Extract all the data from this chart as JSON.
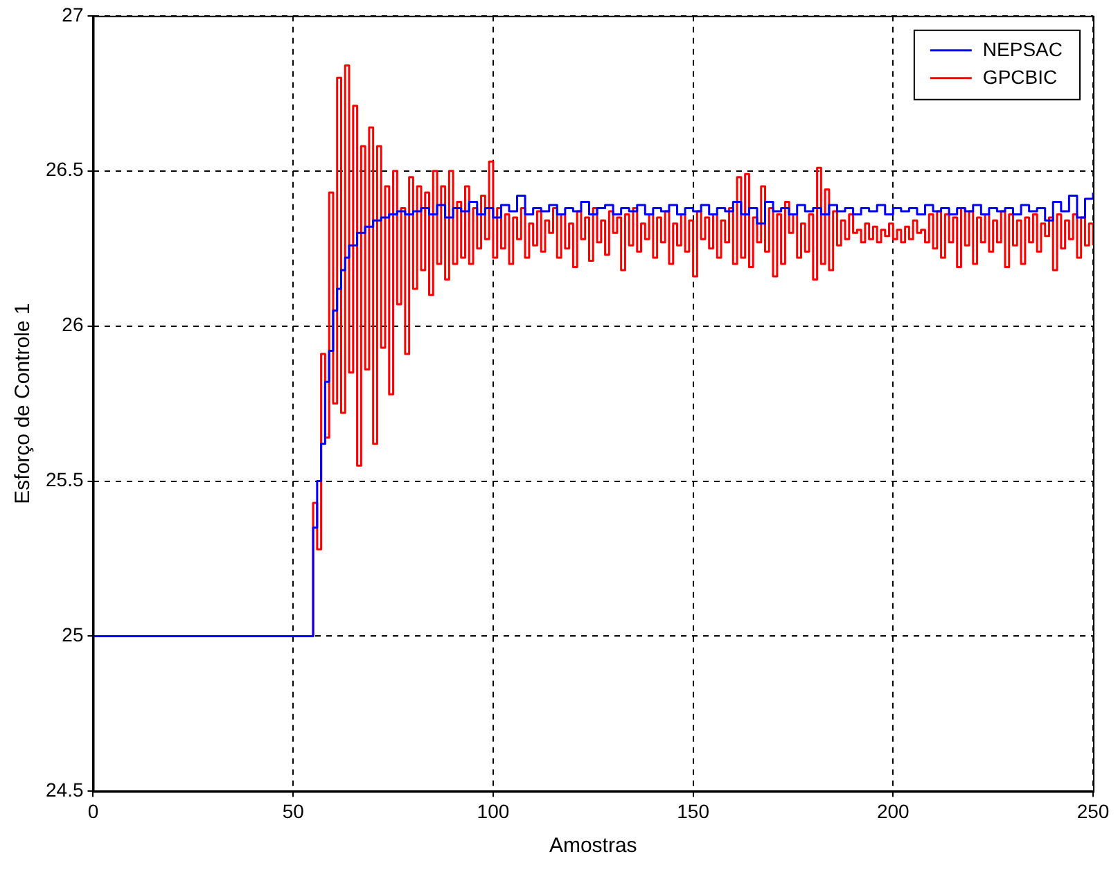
{
  "chart_data": {
    "type": "step",
    "xlabel": "Amostras",
    "ylabel": "Esforço de Controle 1",
    "xlim": [
      0,
      250
    ],
    "xticks": [
      0,
      50,
      100,
      150,
      200,
      250
    ],
    "ylim": [
      24.5,
      27
    ],
    "yticks": [
      24.5,
      25,
      25.5,
      26,
      26.5,
      27
    ],
    "grid": true,
    "legend": "top right",
    "line_style": "solid",
    "marker": "none",
    "series": [
      {
        "name": "NEPSAC",
        "color": "#0000ff",
        "x": [
          0,
          55,
          56,
          57,
          58,
          59,
          60,
          61,
          62,
          63,
          64,
          66,
          68,
          70,
          72,
          74,
          76,
          78,
          80,
          82,
          84,
          86,
          88,
          90,
          92,
          94,
          96,
          98,
          100,
          102,
          104,
          106,
          108,
          110,
          112,
          114,
          116,
          118,
          120,
          122,
          124,
          126,
          128,
          130,
          132,
          134,
          136,
          138,
          140,
          142,
          144,
          146,
          148,
          150,
          152,
          154,
          156,
          158,
          160,
          162,
          164,
          166,
          168,
          170,
          172,
          174,
          176,
          178,
          180,
          182,
          184,
          186,
          188,
          190,
          192,
          194,
          196,
          198,
          200,
          202,
          204,
          206,
          208,
          210,
          212,
          214,
          216,
          218,
          220,
          222,
          224,
          226,
          228,
          230,
          232,
          234,
          236,
          238,
          240,
          242,
          244,
          246,
          248,
          250
        ],
        "values": [
          25,
          25.35,
          25.5,
          25.62,
          25.82,
          25.92,
          26.05,
          26.12,
          26.18,
          26.22,
          26.26,
          26.3,
          26.32,
          26.34,
          26.35,
          26.36,
          26.37,
          26.36,
          26.37,
          26.38,
          26.36,
          26.39,
          26.35,
          26.38,
          26.37,
          26.4,
          26.36,
          26.38,
          26.35,
          26.39,
          26.37,
          26.42,
          26.36,
          26.38,
          26.37,
          26.39,
          26.36,
          26.38,
          26.37,
          26.4,
          26.36,
          26.38,
          26.39,
          26.36,
          26.38,
          26.37,
          26.39,
          26.36,
          26.38,
          26.37,
          26.39,
          26.36,
          26.38,
          26.37,
          26.39,
          26.36,
          26.38,
          26.37,
          26.4,
          26.36,
          26.38,
          26.33,
          26.4,
          26.37,
          26.38,
          26.36,
          26.39,
          26.37,
          26.38,
          26.36,
          26.39,
          26.37,
          26.38,
          26.36,
          26.38,
          26.37,
          26.39,
          26.36,
          26.38,
          26.37,
          26.38,
          26.36,
          26.39,
          26.37,
          26.38,
          26.36,
          26.38,
          26.37,
          26.39,
          26.36,
          26.38,
          26.37,
          26.38,
          26.36,
          26.39,
          26.37,
          26.38,
          26.34,
          26.4,
          26.37,
          26.42,
          26.35,
          26.41,
          26.43
        ]
      },
      {
        "name": "GPCBIC",
        "color": "#ff0000",
        "x": [
          0,
          55,
          56,
          57,
          58,
          59,
          60,
          61,
          62,
          63,
          64,
          65,
          66,
          67,
          68,
          69,
          70,
          71,
          72,
          73,
          74,
          75,
          76,
          77,
          78,
          79,
          80,
          81,
          82,
          83,
          84,
          85,
          86,
          87,
          88,
          89,
          90,
          91,
          92,
          93,
          94,
          95,
          96,
          97,
          98,
          99,
          100,
          101,
          102,
          103,
          104,
          105,
          106,
          107,
          108,
          109,
          110,
          111,
          112,
          113,
          114,
          115,
          116,
          117,
          118,
          119,
          120,
          121,
          122,
          123,
          124,
          125,
          126,
          127,
          128,
          129,
          130,
          131,
          132,
          133,
          134,
          135,
          136,
          137,
          138,
          139,
          140,
          141,
          142,
          143,
          144,
          145,
          146,
          147,
          148,
          149,
          150,
          151,
          152,
          153,
          154,
          155,
          156,
          157,
          158,
          159,
          160,
          161,
          162,
          163,
          164,
          165,
          166,
          167,
          168,
          169,
          170,
          171,
          172,
          173,
          174,
          175,
          176,
          177,
          178,
          179,
          180,
          181,
          182,
          183,
          184,
          185,
          186,
          187,
          188,
          189,
          190,
          191,
          192,
          193,
          194,
          195,
          196,
          197,
          198,
          199,
          200,
          201,
          202,
          203,
          204,
          205,
          206,
          207,
          208,
          209,
          210,
          211,
          212,
          213,
          214,
          215,
          216,
          217,
          218,
          219,
          220,
          221,
          222,
          223,
          224,
          225,
          226,
          227,
          228,
          229,
          230,
          231,
          232,
          233,
          234,
          235,
          236,
          237,
          238,
          239,
          240,
          241,
          242,
          243,
          244,
          245,
          246,
          247,
          248,
          249,
          250
        ],
        "values": [
          25,
          25.43,
          25.28,
          25.91,
          25.64,
          26.43,
          25.75,
          26.8,
          25.72,
          26.84,
          25.85,
          26.71,
          25.55,
          26.58,
          25.86,
          26.64,
          25.62,
          26.58,
          25.93,
          26.45,
          25.78,
          26.5,
          26.07,
          26.38,
          25.91,
          26.48,
          26.12,
          26.45,
          26.18,
          26.43,
          26.1,
          26.5,
          26.2,
          26.45,
          26.15,
          26.5,
          26.2,
          26.4,
          26.22,
          26.45,
          26.2,
          26.38,
          26.25,
          26.42,
          26.28,
          26.53,
          26.22,
          26.38,
          26.25,
          26.36,
          26.2,
          26.35,
          26.28,
          26.38,
          26.22,
          26.33,
          26.26,
          26.37,
          26.24,
          26.34,
          26.3,
          26.38,
          26.22,
          26.36,
          26.25,
          26.33,
          26.19,
          26.37,
          26.28,
          26.35,
          26.21,
          26.38,
          26.27,
          26.34,
          26.23,
          26.37,
          26.3,
          26.35,
          26.18,
          26.36,
          26.26,
          26.38,
          26.24,
          26.33,
          26.28,
          26.36,
          26.22,
          26.35,
          26.27,
          26.37,
          26.2,
          26.33,
          26.26,
          26.36,
          26.24,
          26.34,
          26.16,
          26.37,
          26.28,
          26.35,
          26.25,
          26.36,
          26.22,
          26.34,
          26.27,
          26.38,
          26.2,
          26.48,
          26.22,
          26.49,
          26.19,
          26.35,
          26.27,
          26.45,
          26.24,
          26.38,
          26.16,
          26.36,
          26.2,
          26.4,
          26.3,
          26.36,
          26.22,
          26.33,
          26.24,
          26.36,
          26.15,
          26.51,
          26.2,
          26.44,
          26.18,
          26.37,
          26.26,
          26.34,
          26.28,
          26.36,
          26.3,
          26.31,
          26.27,
          26.33,
          26.28,
          26.32,
          26.27,
          26.31,
          26.29,
          26.33,
          26.28,
          26.31,
          26.27,
          26.32,
          26.28,
          26.34,
          26.3,
          26.31,
          26.27,
          26.36,
          26.25,
          26.37,
          26.22,
          26.36,
          26.27,
          26.35,
          26.19,
          26.38,
          26.26,
          26.37,
          26.2,
          26.35,
          26.27,
          26.36,
          26.24,
          26.34,
          26.27,
          26.37,
          26.19,
          26.36,
          26.26,
          26.34,
          26.2,
          26.35,
          26.27,
          26.36,
          26.24,
          26.33,
          26.29,
          26.35,
          26.18,
          26.36,
          26.25,
          26.34,
          26.28,
          26.36,
          26.22,
          26.35,
          26.26,
          26.33,
          26.26
        ]
      }
    ]
  }
}
